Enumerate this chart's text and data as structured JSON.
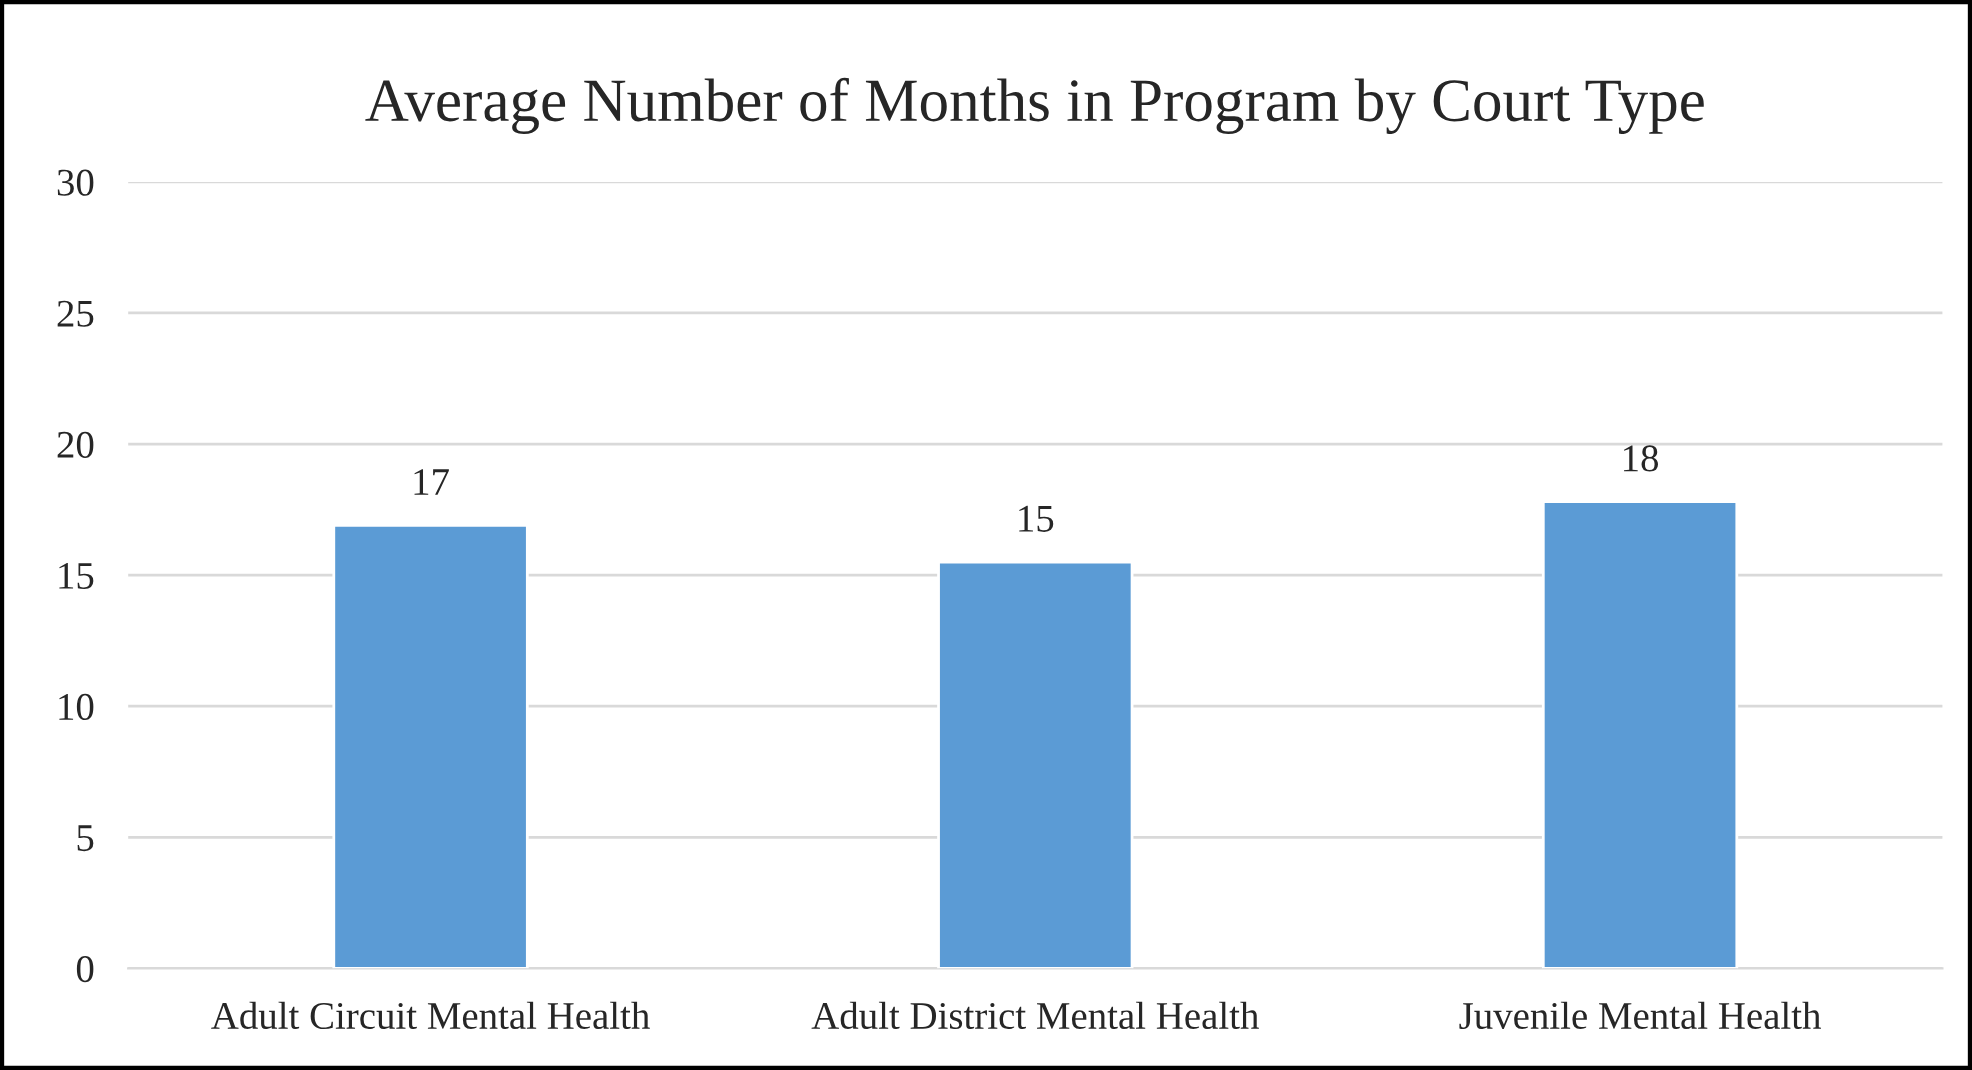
{
  "chart_data": {
    "type": "bar",
    "title": "Average Number of Months in Program by Court Type",
    "categories": [
      "Adult Circuit Mental Health",
      "Adult District Mental Health",
      "Juvenile Mental Health"
    ],
    "values": [
      16.9,
      15.5,
      17.8
    ],
    "value_labels": [
      "17",
      "15",
      "18"
    ],
    "color": "#5b9bd5",
    "ylim": [
      0,
      30
    ],
    "yticks": [
      0,
      5,
      10,
      15,
      20,
      25,
      30
    ],
    "grid": "y"
  }
}
